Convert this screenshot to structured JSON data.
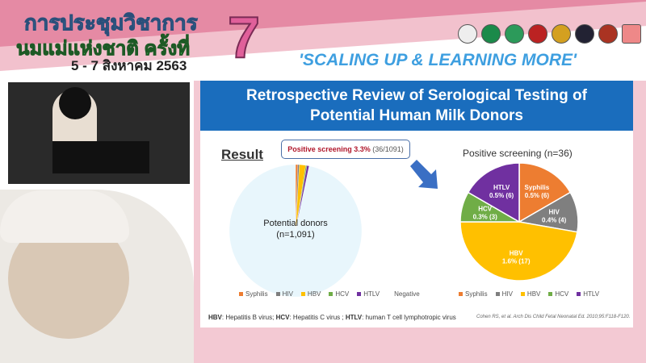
{
  "banner": {
    "title_line1": "การประชุมวิชาการ",
    "title_line2": "นมแม่แห่งชาติ ครั้งที่",
    "dates": "5 - 7 สิงหาคม 2563",
    "edition": "7",
    "slogan": "'SCALING UP & LEARNING MORE'"
  },
  "slide": {
    "title_line1": "Retrospective Review of Serological Testing of",
    "title_line2": "Potential Human Milk Donors",
    "result_label": "Result",
    "callout_bold": "Positive screening 3.3%",
    "callout_rest": " (36/1091)",
    "footnote": {
      "hbv_abbr": "HBV",
      "hbv": ": Hepatitis B virus; ",
      "hcv_abbr": "HCV",
      "hcv": ": Hepatitis C virus ; ",
      "htlv_abbr": "HTLV",
      "htlv": ": human T cell lymphotropic virus"
    },
    "citation": "Cohen RS, et al. Arch Dis Child Fetal Neonatal Ed. 2010;95:F118-F120."
  },
  "chart_data": [
    {
      "type": "pie",
      "title": "",
      "center_label": "Potential donors",
      "center_sublabel": "(n=1,091)",
      "categories": [
        "Syphilis",
        "HIV",
        "HBV",
        "HCV",
        "HTLV",
        "Negative"
      ],
      "values": [
        6,
        4,
        17,
        3,
        6,
        1055
      ],
      "colors": [
        "#ed7d31",
        "#7f7f7f",
        "#ffc000",
        "#70ad47",
        "#7030a0",
        "#e8f6fc"
      ]
    },
    {
      "type": "pie",
      "title": "Positive screening (n=36)",
      "categories": [
        "Syphilis",
        "HIV",
        "HBV",
        "HCV",
        "HTLV"
      ],
      "values": [
        6,
        4,
        17,
        3,
        6
      ],
      "labels": [
        "0.5% (6)",
        "0.4% (4)",
        "1.6% (17)",
        "0.3% (3)",
        "0.5% (6)"
      ],
      "colors": [
        "#ed7d31",
        "#7f7f7f",
        "#ffc000",
        "#70ad47",
        "#7030a0"
      ]
    }
  ]
}
